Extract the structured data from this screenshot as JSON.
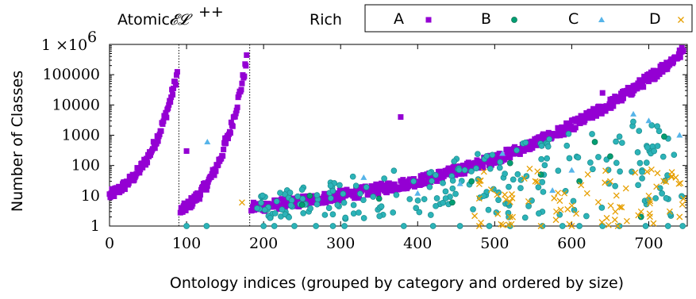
{
  "chart_data": {
    "type": "scatter",
    "title": "",
    "xlabel": "Ontology indices (grouped by category and ordered by size)",
    "ylabel": "Number of Classes",
    "xlim": [
      0,
      750
    ],
    "ylim": [
      1,
      1000000
    ],
    "y_scale": "log",
    "grid": false,
    "x_ticks": [
      "0",
      "100",
      "200",
      "300",
      "400",
      "500",
      "600",
      "700"
    ],
    "x_tick_values": [
      0,
      100,
      200,
      300,
      400,
      500,
      600,
      700
    ],
    "y_ticks": [
      "1",
      "10",
      "100",
      "1000",
      "10000",
      "100000"
    ],
    "y_tick_values": [
      1,
      10,
      100,
      1000,
      10000,
      100000
    ],
    "y_top_tick": {
      "mantissa": "1 ×",
      "base": "10",
      "exp": "6",
      "value": 1000000
    },
    "categories": [
      {
        "label": "Atomic",
        "start": 0,
        "end": 90
      },
      {
        "label": "𝓔𝓛",
        "superscript": "++",
        "start": 90,
        "end": 182
      },
      {
        "label": "Rich",
        "start": 182,
        "end": 750
      }
    ],
    "separators_x": [
      90,
      182
    ],
    "legend_position": "top-right",
    "legend": [
      "A",
      "B",
      "C",
      "D"
    ],
    "colors": {
      "A": "#9400d3",
      "B": "#009e73",
      "C": "#56b4e9",
      "D": "#e69f00",
      "teal_fill": "#2cb3b8",
      "teal_stroke": "#1a8c8c"
    },
    "series": [
      {
        "name": "A",
        "marker": "square",
        "segments": [
          {
            "x_start": 0,
            "x_end": 88,
            "y_start": 10,
            "y_end": 110000
          },
          {
            "x_start": 92,
            "x_end": 178,
            "y_start": 3,
            "y_end": 300000
          },
          {
            "x_start": 184,
            "x_end": 745,
            "y_start": 4,
            "y_end": 600000
          }
        ],
        "outliers": [
          [
            378,
            4000
          ],
          [
            100,
            300
          ],
          [
            150,
            800
          ],
          [
            640,
            25000
          ],
          [
            700,
            60000
          ]
        ]
      },
      {
        "name": "B",
        "marker": "circle",
        "points": [
          [
            260,
            10
          ],
          [
            470,
            30
          ],
          [
            560,
            50
          ],
          [
            650,
            200
          ],
          [
            720,
            900
          ],
          [
            690,
            2
          ],
          [
            610,
            30
          ],
          [
            350,
            8
          ],
          [
            445,
            6
          ],
          [
            520,
            120
          ],
          [
            250,
            5
          ],
          [
            630,
            600
          ]
        ]
      },
      {
        "name": "C",
        "marker": "triangle",
        "points": [
          [
            127,
            600
          ],
          [
            330,
            40
          ],
          [
            455,
            25
          ],
          [
            575,
            15
          ],
          [
            700,
            3000
          ],
          [
            740,
            1000
          ],
          [
            680,
            5000
          ],
          [
            600,
            70
          ],
          [
            400,
            12
          ],
          [
            510,
            250
          ]
        ]
      },
      {
        "name": "D",
        "marker": "cross",
        "points": [
          [
            172,
            6
          ],
          [
            560,
            1
          ],
          [
            600,
            1
          ],
          [
            650,
            30
          ],
          [
            700,
            10
          ],
          [
            730,
            60
          ],
          [
            745,
            8
          ],
          [
            520,
            2
          ],
          [
            480,
            1
          ],
          [
            690,
            3
          ],
          [
            710,
            20
          ],
          [
            740,
            2
          ],
          [
            580,
            3
          ],
          [
            620,
            12
          ],
          [
            660,
            1
          ],
          [
            735,
            40
          ]
        ]
      }
    ],
    "low_bound_points": [
      100,
      126,
      200,
      214,
      240,
      268,
      290,
      305,
      382,
      420,
      455,
      493,
      520,
      562,
      588,
      610,
      640,
      662,
      696,
      725,
      744
    ],
    "outlier_point": [
      662,
      900
    ]
  }
}
